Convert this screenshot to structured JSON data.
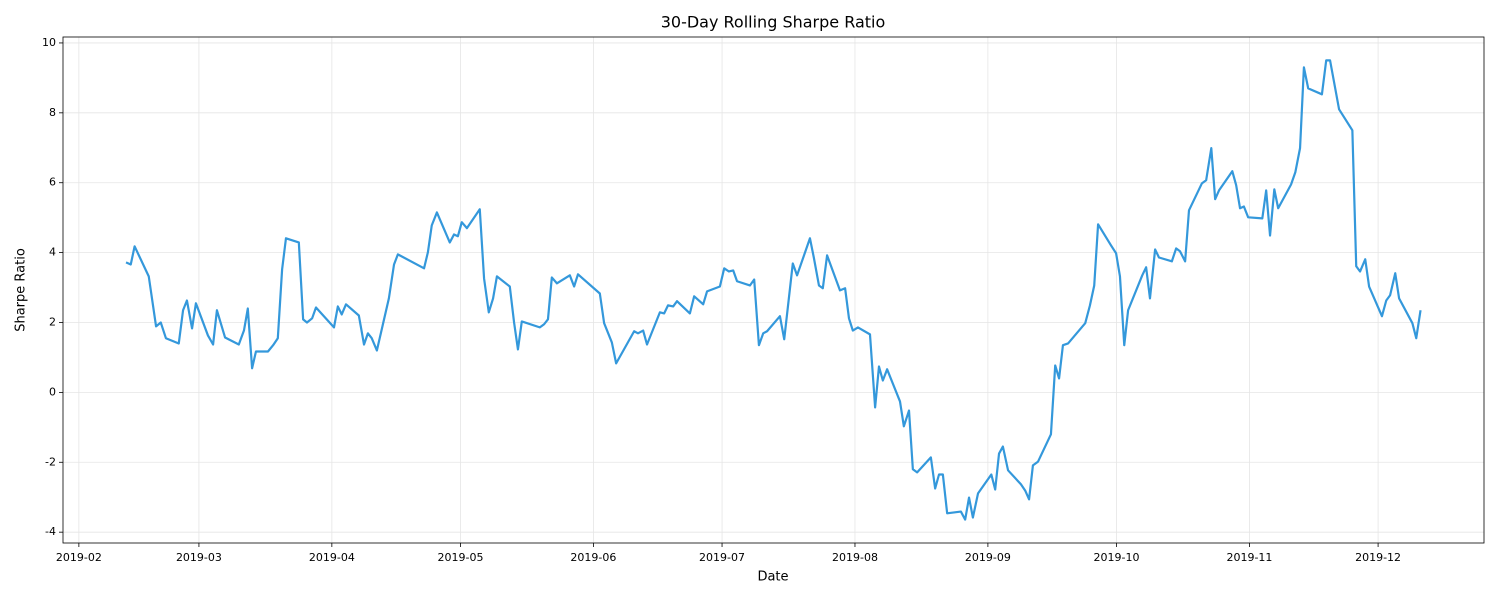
{
  "chart_data": {
    "type": "line",
    "title": "30-Day Rolling Sharpe Ratio",
    "xlabel": "Date",
    "ylabel": "Sharpe Ratio",
    "grid": true,
    "xlim": [
      28.3,
      359.7
    ],
    "ylim": [
      -4.31,
      10.17
    ],
    "xticks": [
      {
        "value": 32,
        "label": "2019-02"
      },
      {
        "value": 60,
        "label": "2019-03"
      },
      {
        "value": 91,
        "label": "2019-04"
      },
      {
        "value": 121,
        "label": "2019-05"
      },
      {
        "value": 152,
        "label": "2019-06"
      },
      {
        "value": 182,
        "label": "2019-07"
      },
      {
        "value": 213,
        "label": "2019-08"
      },
      {
        "value": 244,
        "label": "2019-09"
      },
      {
        "value": 274,
        "label": "2019-10"
      },
      {
        "value": 305,
        "label": "2019-11"
      },
      {
        "value": 335,
        "label": "2019-12"
      }
    ],
    "yticks": [
      -4,
      -2,
      0,
      2,
      4,
      6,
      8,
      10
    ],
    "x": [
      43,
      44.1,
      45,
      48.3,
      50,
      51.1,
      52.3,
      55.3,
      56.3,
      57.2,
      58.4,
      59.3,
      62.1,
      63.3,
      64.2,
      66.1,
      69.3,
      70.5,
      71.4,
      72.4,
      73.3,
      76.1,
      77.3,
      78.4,
      79.4,
      80.3,
      83.3,
      84.3,
      85.2,
      86.4,
      87.3,
      91.5,
      92.4,
      93.3,
      94.3,
      97.3,
      98.5,
      99.4,
      100.3,
      101.5,
      104.3,
      105.5,
      106.4,
      112.5,
      113.4,
      114.3,
      115.5,
      118.5,
      119.5,
      120.4,
      121.3,
      122.5,
      125.5,
      126.5,
      127.6,
      128.6,
      129.5,
      132.5,
      133.5,
      134.4,
      135.3,
      139.5,
      140.5,
      141.4,
      142.3,
      143.5,
      146.5,
      147.5,
      148.4,
      153.5,
      154.5,
      156.3,
      157.3,
      161.5,
      162.4,
      163.6,
      164.5,
      167.5,
      168.5,
      169.4,
      170.6,
      171.5,
      174.5,
      175.5,
      177.6,
      178.5,
      181.5,
      182.5,
      183.6,
      184.6,
      185.5,
      188.5,
      189.5,
      190.6,
      191.6,
      192.5,
      195.5,
      196.5,
      198.5,
      199.5,
      202.5,
      203.4,
      204.6,
      205.5,
      206.5,
      209.5,
      210.7,
      211.6,
      212.5,
      213.7,
      216.5,
      217.7,
      218.6,
      219.5,
      220.5,
      223.5,
      224.4,
      225.6,
      226.5,
      227.5,
      230.7,
      231.7,
      232.6,
      233.5,
      234.5,
      237.7,
      238.7,
      239.6,
      240.5,
      241.7,
      244.8,
      245.7,
      246.6,
      247.5,
      248.7,
      251.7,
      252.7,
      253.6,
      254.5,
      255.7,
      258.7,
      259.7,
      260.6,
      261.5,
      262.7,
      266.7,
      267.8,
      268.8,
      269.7,
      272.7,
      273.9,
      274.8,
      275.8,
      276.7,
      280,
      280.9,
      281.8,
      283,
      283.9,
      286.9,
      287.9,
      288.8,
      290,
      290.9,
      293.9,
      294.9,
      296.1,
      297,
      297.9,
      301,
      301.9,
      302.8,
      303.7,
      304.7,
      308,
      308.9,
      309.8,
      310.8,
      311.7,
      314.7,
      315.7,
      316.8,
      317.7,
      318.7,
      321.9,
      322.9,
      323.8,
      325.9,
      329,
      329.9,
      330.8,
      332,
      332.9,
      335.9,
      336.9,
      337.8,
      339,
      339.9,
      343,
      343.9,
      344.9
    ],
    "series": [
      {
        "color": "#3498db",
        "values": [
          3.72,
          3.66,
          4.18,
          3.32,
          1.89,
          2.0,
          1.55,
          1.4,
          2.35,
          2.63,
          1.83,
          2.55,
          1.63,
          1.37,
          2.35,
          1.57,
          1.37,
          1.77,
          2.4,
          0.69,
          1.17,
          1.17,
          1.35,
          1.55,
          3.52,
          4.41,
          4.29,
          2.09,
          2.0,
          2.12,
          2.43,
          1.86,
          2.46,
          2.23,
          2.52,
          2.2,
          1.37,
          1.69,
          1.55,
          1.2,
          2.69,
          3.66,
          3.95,
          3.55,
          4.01,
          4.78,
          5.15,
          4.29,
          4.52,
          4.47,
          4.87,
          4.7,
          5.24,
          3.26,
          2.29,
          2.69,
          3.32,
          3.03,
          2.0,
          1.23,
          2.03,
          1.86,
          1.95,
          2.09,
          3.29,
          3.12,
          3.35,
          3.03,
          3.38,
          2.83,
          1.98,
          1.43,
          0.83,
          1.75,
          1.69,
          1.77,
          1.37,
          2.29,
          2.26,
          2.49,
          2.46,
          2.61,
          2.26,
          2.75,
          2.52,
          2.89,
          3.03,
          3.55,
          3.46,
          3.49,
          3.18,
          3.06,
          3.23,
          1.35,
          1.69,
          1.75,
          2.18,
          1.52,
          3.69,
          3.35,
          4.41,
          3.86,
          3.06,
          2.98,
          3.92,
          2.92,
          2.98,
          2.12,
          1.77,
          1.86,
          1.66,
          -0.43,
          0.74,
          0.34,
          0.66,
          -0.26,
          -0.97,
          -0.52,
          -2.2,
          -2.29,
          -1.86,
          -2.75,
          -2.35,
          -2.35,
          -3.46,
          -3.41,
          -3.64,
          -3.01,
          -3.58,
          -2.89,
          -2.35,
          -2.78,
          -1.75,
          -1.55,
          -2.23,
          -2.63,
          -2.81,
          -3.06,
          -2.09,
          -1.98,
          -1.2,
          0.77,
          0.4,
          1.35,
          1.4,
          1.98,
          2.49,
          3.06,
          4.81,
          4.21,
          3.98,
          3.32,
          1.35,
          2.35,
          3.35,
          3.58,
          2.69,
          4.09,
          3.86,
          3.75,
          4.12,
          4.04,
          3.75,
          5.21,
          5.98,
          6.07,
          6.99,
          5.53,
          5.78,
          6.33,
          5.93,
          5.27,
          5.32,
          5.01,
          4.98,
          5.78,
          4.49,
          5.81,
          5.27,
          5.95,
          6.3,
          6.99,
          9.3,
          8.7,
          8.53,
          9.5,
          9.5,
          8.1,
          7.5,
          3.61,
          3.46,
          3.81,
          3.03,
          2.18,
          2.63,
          2.78,
          3.41,
          2.69,
          1.98,
          1.55,
          2.35
        ]
      }
    ]
  }
}
